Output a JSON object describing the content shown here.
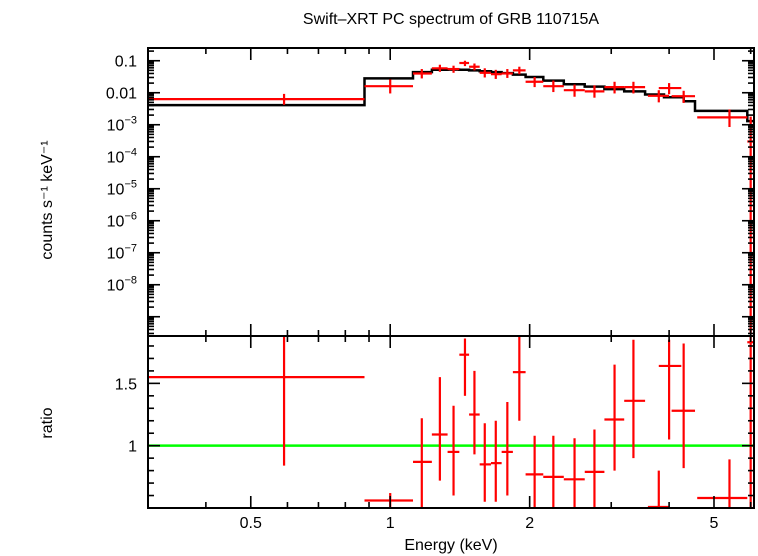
{
  "chart_data": [
    {
      "panel": "spectrum",
      "type": "scatter",
      "title": "Swift–XRT PC spectrum of GRB 110715A",
      "ylabel": "counts s⁻¹ keV⁻¹",
      "xscale": "log",
      "yscale": "log",
      "xlim": [
        0.3,
        6.1
      ],
      "ylim": [
        2.5e-10,
        0.25
      ],
      "x_ticks": [
        {
          "value": 0.5,
          "label": "0.5"
        },
        {
          "value": 1,
          "label": "1"
        },
        {
          "value": 2,
          "label": "2"
        },
        {
          "value": 5,
          "label": "5"
        }
      ],
      "y_ticks": [
        {
          "value": 0.1,
          "label": "0.1",
          "base": "",
          "exp": ""
        },
        {
          "value": 0.01,
          "label": "0.01",
          "base": "",
          "exp": ""
        },
        {
          "value": 0.001,
          "label": "",
          "base": "10",
          "exp": "−3"
        },
        {
          "value": 0.0001,
          "label": "",
          "base": "10",
          "exp": "−4"
        },
        {
          "value": 1e-05,
          "label": "",
          "base": "10",
          "exp": "−5"
        },
        {
          "value": 1e-06,
          "label": "",
          "base": "10",
          "exp": "−6"
        },
        {
          "value": 1e-07,
          "label": "",
          "base": "10",
          "exp": "−7"
        },
        {
          "value": 1e-08,
          "label": "",
          "base": "10",
          "exp": "−8"
        }
      ],
      "series": [
        {
          "color": "#ff0000",
          "points": [
            {
              "x": 0.59,
              "xlo": 0.3,
              "xhi": 0.88,
              "y": 0.0063,
              "ylo": 0.0042,
              "yhi": 0.0092
            },
            {
              "x": 1.0,
              "xlo": 0.88,
              "xhi": 1.12,
              "y": 0.016,
              "ylo": 0.0095,
              "yhi": 0.026
            },
            {
              "x": 1.17,
              "xlo": 1.12,
              "xhi": 1.23,
              "y": 0.04,
              "ylo": 0.028,
              "yhi": 0.055
            },
            {
              "x": 1.28,
              "xlo": 1.23,
              "xhi": 1.33,
              "y": 0.058,
              "ylo": 0.045,
              "yhi": 0.075
            },
            {
              "x": 1.37,
              "xlo": 1.33,
              "xhi": 1.41,
              "y": 0.055,
              "ylo": 0.042,
              "yhi": 0.07
            },
            {
              "x": 1.45,
              "xlo": 1.41,
              "xhi": 1.48,
              "y": 0.085,
              "ylo": 0.068,
              "yhi": 0.1
            },
            {
              "x": 1.52,
              "xlo": 1.48,
              "xhi": 1.56,
              "y": 0.065,
              "ylo": 0.05,
              "yhi": 0.082
            },
            {
              "x": 1.6,
              "xlo": 1.56,
              "xhi": 1.65,
              "y": 0.042,
              "ylo": 0.03,
              "yhi": 0.058
            },
            {
              "x": 1.69,
              "xlo": 1.65,
              "xhi": 1.74,
              "y": 0.038,
              "ylo": 0.027,
              "yhi": 0.052
            },
            {
              "x": 1.79,
              "xlo": 1.74,
              "xhi": 1.84,
              "y": 0.04,
              "ylo": 0.029,
              "yhi": 0.055
            },
            {
              "x": 1.9,
              "xlo": 1.84,
              "xhi": 1.96,
              "y": 0.05,
              "ylo": 0.038,
              "yhi": 0.065
            },
            {
              "x": 2.05,
              "xlo": 1.96,
              "xhi": 2.14,
              "y": 0.022,
              "ylo": 0.015,
              "yhi": 0.031
            },
            {
              "x": 2.25,
              "xlo": 2.14,
              "xhi": 2.37,
              "y": 0.016,
              "ylo": 0.0105,
              "yhi": 0.024
            },
            {
              "x": 2.5,
              "xlo": 2.37,
              "xhi": 2.63,
              "y": 0.012,
              "ylo": 0.0075,
              "yhi": 0.018
            },
            {
              "x": 2.76,
              "xlo": 2.63,
              "xhi": 2.9,
              "y": 0.011,
              "ylo": 0.007,
              "yhi": 0.017
            },
            {
              "x": 3.05,
              "xlo": 2.9,
              "xhi": 3.2,
              "y": 0.015,
              "ylo": 0.0095,
              "yhi": 0.022
            },
            {
              "x": 3.35,
              "xlo": 3.2,
              "xhi": 3.55,
              "y": 0.015,
              "ylo": 0.0095,
              "yhi": 0.022
            },
            {
              "x": 3.8,
              "xlo": 3.6,
              "xhi": 4.0,
              "y": 0.008,
              "ylo": 0.005,
              "yhi": 0.012
            },
            {
              "x": 4.0,
              "xlo": 3.8,
              "xhi": 4.25,
              "y": 0.014,
              "ylo": 0.009,
              "yhi": 0.02
            },
            {
              "x": 4.3,
              "xlo": 4.05,
              "xhi": 4.55,
              "y": 0.0078,
              "ylo": 0.0048,
              "yhi": 0.0115
            },
            {
              "x": 5.4,
              "xlo": 4.6,
              "xhi": 5.9,
              "y": 0.0017,
              "ylo": 0.00085,
              "yhi": 0.003
            },
            {
              "x": 6.0,
              "xlo": 5.9,
              "xhi": 6.08,
              "y": 0.0003,
              "ylo": 3e-10,
              "yhi": 0.0018
            }
          ]
        },
        {
          "color": "#000000",
          "kind": "model-step",
          "steps": [
            {
              "x0": 0.3,
              "x1": 0.88,
              "y": 0.0041
            },
            {
              "x0": 0.88,
              "x1": 1.12,
              "y": 0.028
            },
            {
              "x0": 1.12,
              "x1": 1.23,
              "y": 0.044
            },
            {
              "x0": 1.23,
              "x1": 1.33,
              "y": 0.052
            },
            {
              "x0": 1.33,
              "x1": 1.41,
              "y": 0.053
            },
            {
              "x0": 1.41,
              "x1": 1.48,
              "y": 0.052
            },
            {
              "x0": 1.48,
              "x1": 1.56,
              "y": 0.05
            },
            {
              "x0": 1.56,
              "x1": 1.65,
              "y": 0.047
            },
            {
              "x0": 1.65,
              "x1": 1.74,
              "y": 0.044
            },
            {
              "x0": 1.74,
              "x1": 1.84,
              "y": 0.041
            },
            {
              "x0": 1.84,
              "x1": 1.96,
              "y": 0.037
            },
            {
              "x0": 1.96,
              "x1": 2.14,
              "y": 0.031
            },
            {
              "x0": 2.14,
              "x1": 2.37,
              "y": 0.024
            },
            {
              "x0": 2.37,
              "x1": 2.63,
              "y": 0.0185
            },
            {
              "x0": 2.63,
              "x1": 2.9,
              "y": 0.0155
            },
            {
              "x0": 2.9,
              "x1": 3.2,
              "y": 0.013
            },
            {
              "x0": 3.2,
              "x1": 3.55,
              "y": 0.011
            },
            {
              "x0": 3.55,
              "x1": 3.9,
              "y": 0.0088
            },
            {
              "x0": 3.9,
              "x1": 4.3,
              "y": 0.0072
            },
            {
              "x0": 4.3,
              "x1": 4.55,
              "y": 0.0054
            },
            {
              "x0": 4.55,
              "x1": 5.9,
              "y": 0.0027
            },
            {
              "x0": 5.9,
              "x1": 6.1,
              "y": 0.0013
            }
          ]
        }
      ]
    },
    {
      "panel": "ratio",
      "type": "scatter",
      "xlabel": "Energy (keV)",
      "ylabel": "ratio",
      "xscale": "log",
      "xlim": [
        0.3,
        6.1
      ],
      "ylim": [
        0.5,
        1.88
      ],
      "y_ticks": [
        {
          "value": 1,
          "label": "1"
        },
        {
          "value": 1.5,
          "label": "1.5"
        }
      ],
      "reference_line": {
        "y": 1,
        "color": "#00ff00"
      },
      "series": [
        {
          "color": "#ff0000",
          "points": [
            {
              "x": 0.59,
              "xlo": 0.3,
              "xhi": 0.88,
              "y": 1.55,
              "ylo": 0.84,
              "yhi": 1.88
            },
            {
              "x": 1.0,
              "xlo": 0.88,
              "xhi": 1.12,
              "y": 0.56,
              "ylo": 0.5,
              "yhi": 0.62
            },
            {
              "x": 1.17,
              "xlo": 1.12,
              "xhi": 1.23,
              "y": 0.87,
              "ylo": 0.5,
              "yhi": 1.22
            },
            {
              "x": 1.28,
              "xlo": 1.23,
              "xhi": 1.33,
              "y": 1.09,
              "ylo": 0.72,
              "yhi": 1.55
            },
            {
              "x": 1.37,
              "xlo": 1.33,
              "xhi": 1.41,
              "y": 0.95,
              "ylo": 0.6,
              "yhi": 1.32
            },
            {
              "x": 1.45,
              "xlo": 1.41,
              "xhi": 1.48,
              "y": 1.73,
              "ylo": 1.4,
              "yhi": 1.86
            },
            {
              "x": 1.52,
              "xlo": 1.48,
              "xhi": 1.56,
              "y": 1.25,
              "ylo": 0.93,
              "yhi": 1.6
            },
            {
              "x": 1.6,
              "xlo": 1.56,
              "xhi": 1.65,
              "y": 0.85,
              "ylo": 0.55,
              "yhi": 1.18
            },
            {
              "x": 1.69,
              "xlo": 1.65,
              "xhi": 1.74,
              "y": 0.86,
              "ylo": 0.55,
              "yhi": 1.2
            },
            {
              "x": 1.79,
              "xlo": 1.74,
              "xhi": 1.84,
              "y": 0.95,
              "ylo": 0.6,
              "yhi": 1.35
            },
            {
              "x": 1.9,
              "xlo": 1.84,
              "xhi": 1.96,
              "y": 1.59,
              "ylo": 1.2,
              "yhi": 1.88
            },
            {
              "x": 2.05,
              "xlo": 1.96,
              "xhi": 2.14,
              "y": 0.77,
              "ylo": 0.5,
              "yhi": 1.08
            },
            {
              "x": 2.25,
              "xlo": 2.14,
              "xhi": 2.37,
              "y": 0.75,
              "ylo": 0.5,
              "yhi": 1.08
            },
            {
              "x": 2.5,
              "xlo": 2.37,
              "xhi": 2.63,
              "y": 0.73,
              "ylo": 0.5,
              "yhi": 1.06
            },
            {
              "x": 2.76,
              "xlo": 2.63,
              "xhi": 2.9,
              "y": 0.79,
              "ylo": 0.5,
              "yhi": 1.13
            },
            {
              "x": 3.05,
              "xlo": 2.9,
              "xhi": 3.2,
              "y": 1.21,
              "ylo": 0.8,
              "yhi": 1.65
            },
            {
              "x": 3.35,
              "xlo": 3.2,
              "xhi": 3.55,
              "y": 1.36,
              "ylo": 0.9,
              "yhi": 1.85
            },
            {
              "x": 3.8,
              "xlo": 3.6,
              "xhi": 4.0,
              "y": 0.5,
              "ylo": 0.5,
              "yhi": 0.8
            },
            {
              "x": 4.0,
              "xlo": 3.8,
              "xhi": 4.25,
              "y": 1.64,
              "ylo": 1.05,
              "yhi": 1.85
            },
            {
              "x": 4.3,
              "xlo": 4.05,
              "xhi": 4.55,
              "y": 1.28,
              "ylo": 0.82,
              "yhi": 1.82
            },
            {
              "x": 5.4,
              "xlo": 4.6,
              "xhi": 5.9,
              "y": 0.58,
              "ylo": 0.5,
              "yhi": 0.89
            },
            {
              "x": 6.0,
              "xlo": 5.9,
              "xhi": 6.08,
              "y": 1.83,
              "ylo": 0.5,
              "yhi": 1.88
            }
          ]
        }
      ]
    }
  ]
}
